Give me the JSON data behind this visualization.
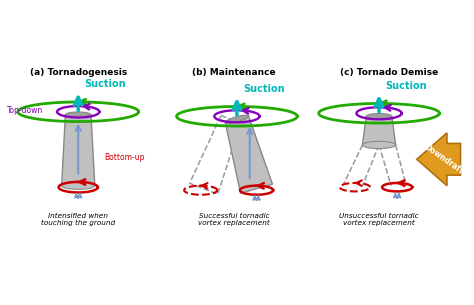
{
  "titles": [
    "(a) Tornadogenesis",
    "(b) Maintenance",
    "(c) Tornado Demise"
  ],
  "suction_color": "#00B8B8",
  "green_ring_color": "#22AA00",
  "purple_ring_color": "#8800BB",
  "red_ring_color": "#CC0000",
  "blue_arrow_color": "#7799CC",
  "tornado_fill": "#C0C0C0",
  "tornado_edge": "#888888",
  "dashed_color": "#999999",
  "downdraft_fill": "#E09A20",
  "downdraft_edge": "#B07010",
  "topdown_color": "#8800BB",
  "bottomup_color": "#CC0000",
  "panel_captions": [
    "Intensified when\ntouching the ground",
    "Successful tornadic\nvortex replacement",
    "Unsuccessful tornadic\nvortex replacement"
  ],
  "topdown_label": "Top-down",
  "bottomup_label": "Bottom-up",
  "suction_label": "Suction",
  "downdraft_label": "Downdraft"
}
